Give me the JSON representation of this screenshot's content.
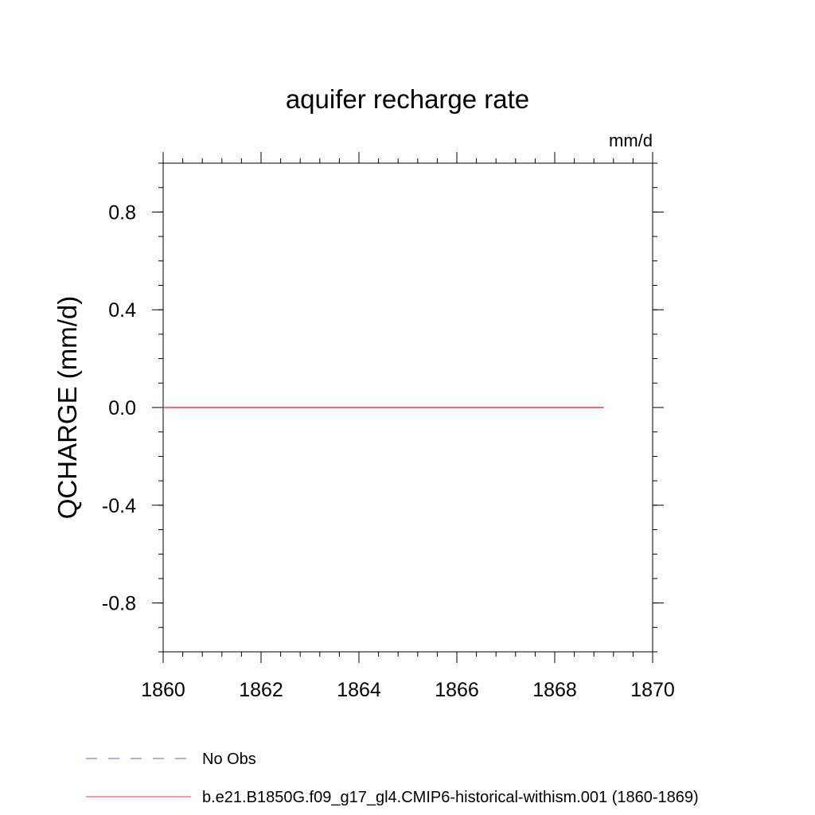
{
  "chart_data": {
    "type": "line",
    "title": "aquifer recharge rate",
    "units": "mm/d",
    "xlabel": "",
    "ylabel": "QCHARGE  (mm/d)",
    "xlim": [
      1860,
      1870
    ],
    "ylim": [
      -1.0,
      1.0
    ],
    "x_ticks": [
      "1860",
      "1862",
      "1864",
      "1866",
      "1868",
      "1870"
    ],
    "y_ticks": [
      "0.8",
      "0.4",
      "0.0",
      "-0.4",
      "-0.8"
    ],
    "grid": false,
    "legend_position": "bottom-left",
    "series": [
      {
        "name": "b.e21.B1850G.f09_g17_gl4.CMIP6-historical-withism.001 (1860-1869)",
        "color": "#ff3333",
        "line_style": "solid",
        "x": [
          1860,
          1861,
          1862,
          1863,
          1864,
          1865,
          1866,
          1867,
          1868,
          1869
        ],
        "y": [
          0,
          0,
          0,
          0,
          0,
          0,
          0,
          0,
          0,
          0
        ]
      }
    ],
    "legend": [
      {
        "label": "No Obs",
        "color": "#6666cc",
        "line_style": "dashed"
      },
      {
        "label": "b.e21.B1850G.f09_g17_gl4.CMIP6-historical-withism.001 (1860-1869)",
        "color": "#ff3333",
        "line_style": "solid"
      }
    ]
  }
}
